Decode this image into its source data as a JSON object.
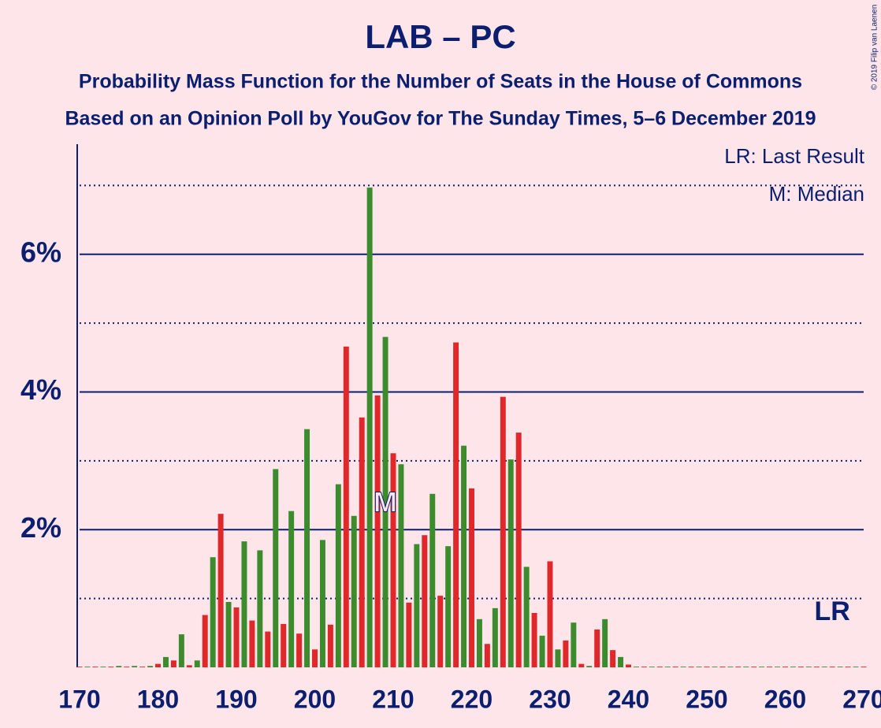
{
  "chart_data": {
    "type": "bar",
    "title": "LAB – PC",
    "subtitle": "Probability Mass Function for the Number of Seats in the House of Commons",
    "subtitle2": "Based on an Opinion Poll by YouGov for The Sunday Times, 5–6 December 2019",
    "copyright": "© 2019 Filip van Laenen",
    "legend": [
      "LR: Last Result",
      "M: Median"
    ],
    "x": [
      170,
      171,
      172,
      173,
      174,
      175,
      176,
      177,
      178,
      179,
      180,
      181,
      182,
      183,
      184,
      185,
      186,
      187,
      188,
      189,
      190,
      191,
      192,
      193,
      194,
      195,
      196,
      197,
      198,
      199,
      200,
      201,
      202,
      203,
      204,
      205,
      206,
      207,
      208,
      209,
      210,
      211,
      212,
      213,
      214,
      215,
      216,
      217,
      218,
      219,
      220,
      221,
      222,
      223,
      224,
      225,
      226,
      227,
      228,
      229,
      230,
      231,
      232,
      233,
      234,
      235,
      236,
      237,
      238,
      239,
      240,
      241,
      242,
      243,
      244,
      245,
      246,
      247,
      248,
      249,
      250,
      251,
      252,
      253,
      254,
      255,
      256,
      257,
      258,
      259,
      260,
      261,
      262,
      263,
      264,
      265,
      266,
      267,
      268,
      269,
      270
    ],
    "values": [
      0.01,
      0.01,
      0.01,
      0.01,
      0.01,
      0.02,
      0.01,
      0.02,
      0.01,
      0.02,
      0.05,
      0.15,
      0.1,
      0.48,
      0.03,
      0.1,
      0.76,
      1.6,
      2.23,
      0.95,
      0.87,
      1.83,
      0.68,
      1.7,
      0.52,
      2.88,
      0.63,
      2.27,
      0.49,
      3.46,
      0.26,
      1.85,
      0.62,
      2.66,
      4.66,
      2.2,
      3.63,
      6.97,
      3.95,
      4.8,
      3.11,
      2.95,
      0.94,
      1.79,
      1.92,
      2.52,
      1.04,
      1.76,
      4.72,
      3.22,
      2.6,
      0.7,
      0.34,
      0.86,
      3.93,
      3.02,
      3.41,
      1.46,
      0.79,
      0.46,
      1.54,
      0.26,
      0.39,
      0.65,
      0.05,
      0.02,
      0.55,
      0.7,
      0.25,
      0.15,
      0.04,
      0.01,
      0.01,
      0.01,
      0.01,
      0.01,
      0.01,
      0.01,
      0.01,
      0.01,
      0.01,
      0.01,
      0.01,
      0.01,
      0.01,
      0.01,
      0.01,
      0.01,
      0.01,
      0.01,
      0.01,
      0.01,
      0.01,
      0.01,
      0.01,
      0.01,
      0.01,
      0.01,
      0.01,
      0.01,
      0.01
    ],
    "bar_colors": [
      "#e0282a",
      "#3c8c2e"
    ],
    "xlim": [
      170,
      270
    ],
    "xticks": [
      170,
      180,
      190,
      200,
      210,
      220,
      230,
      240,
      250,
      260,
      270
    ],
    "ylim": [
      0,
      7.6
    ],
    "yticks": [
      {
        "value": 2,
        "label": "2%"
      },
      {
        "value": 4,
        "label": "4%"
      },
      {
        "value": 6,
        "label": "6%"
      }
    ],
    "dotted_grid": [
      1,
      3,
      5,
      7
    ],
    "median": {
      "x": 209,
      "label": "M"
    },
    "last_result": {
      "x": 266,
      "label": "LR"
    }
  }
}
